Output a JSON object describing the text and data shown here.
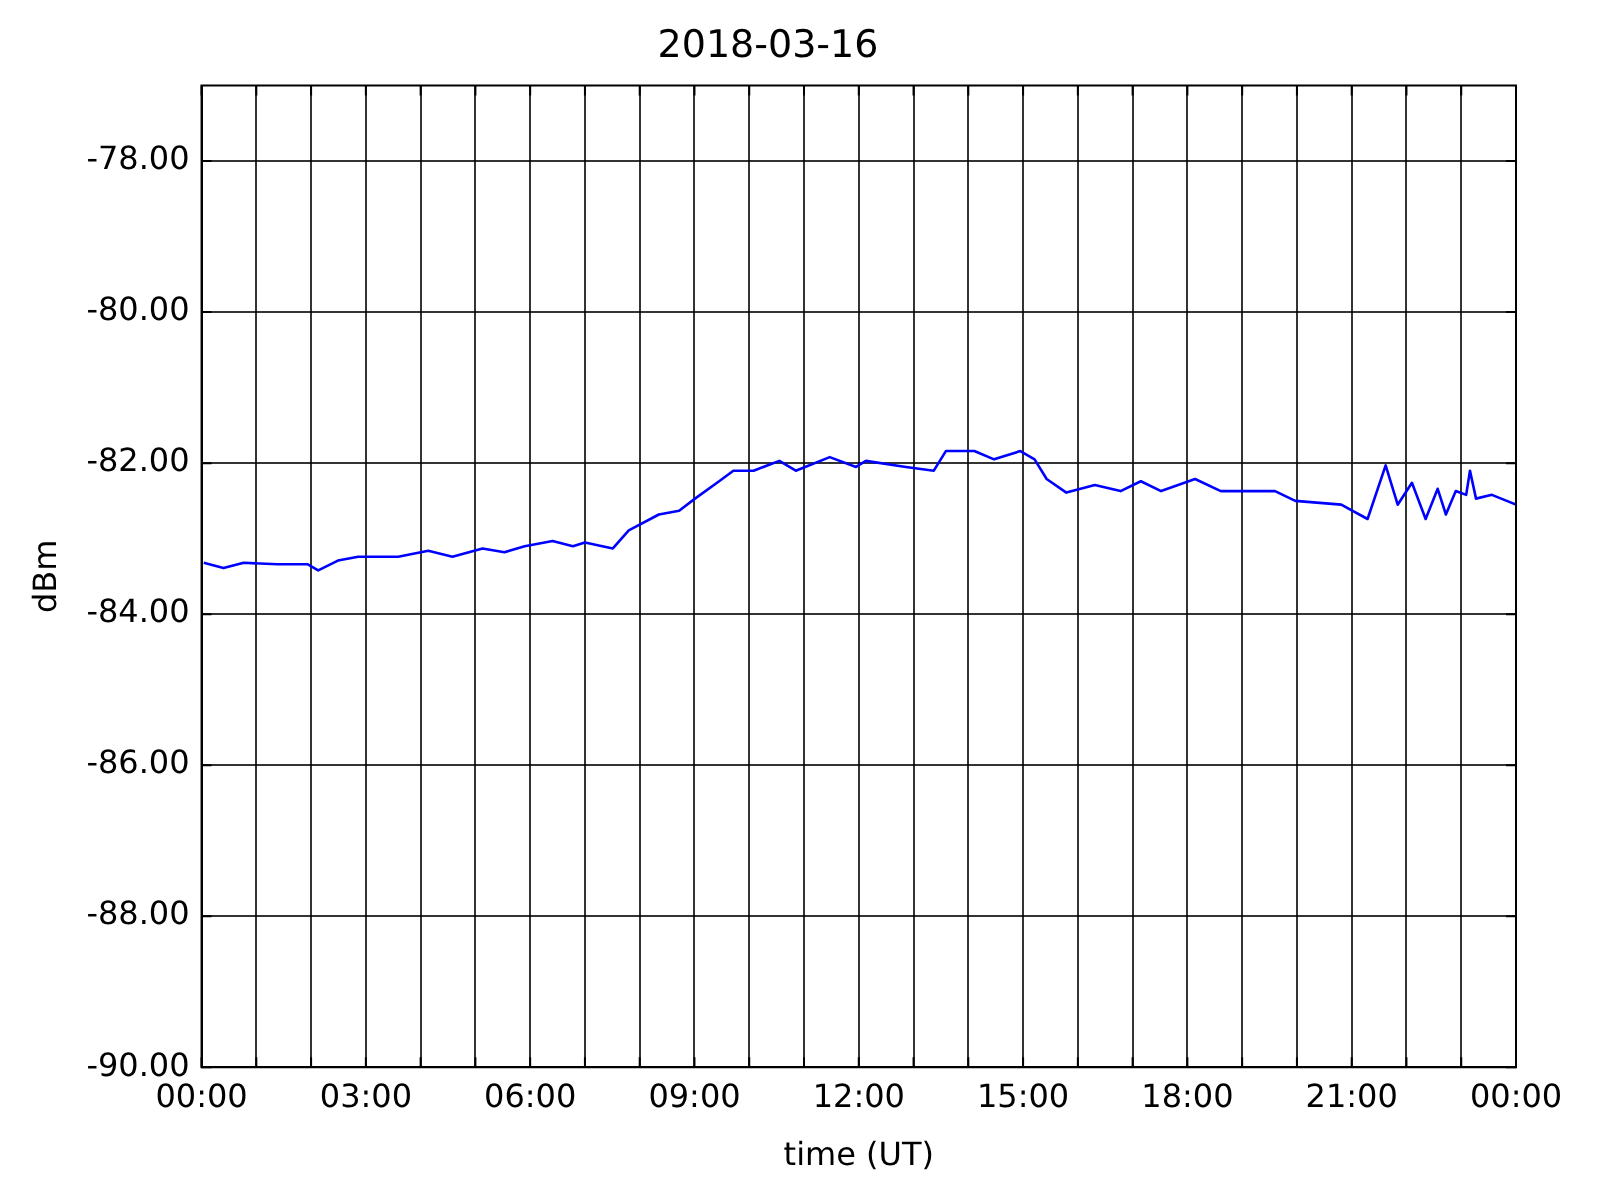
{
  "chart_data": {
    "type": "line",
    "title": "2018-03-16",
    "xlabel": "time (UT)",
    "ylabel": "dBm",
    "xlim": [
      0,
      24
    ],
    "xticks": [
      {
        "value": 0,
        "label": "00:00"
      },
      {
        "value": 1,
        "label": null
      },
      {
        "value": 2,
        "label": null
      },
      {
        "value": 3,
        "label": "03:00"
      },
      {
        "value": 4,
        "label": null
      },
      {
        "value": 5,
        "label": null
      },
      {
        "value": 6,
        "label": "06:00"
      },
      {
        "value": 7,
        "label": null
      },
      {
        "value": 8,
        "label": null
      },
      {
        "value": 9,
        "label": "09:00"
      },
      {
        "value": 10,
        "label": null
      },
      {
        "value": 11,
        "label": null
      },
      {
        "value": 12,
        "label": "12:00"
      },
      {
        "value": 13,
        "label": null
      },
      {
        "value": 14,
        "label": null
      },
      {
        "value": 15,
        "label": "15:00"
      },
      {
        "value": 16,
        "label": null
      },
      {
        "value": 17,
        "label": null
      },
      {
        "value": 18,
        "label": "18:00"
      },
      {
        "value": 19,
        "label": null
      },
      {
        "value": 20,
        "label": null
      },
      {
        "value": 21,
        "label": "21:00"
      },
      {
        "value": 22,
        "label": null
      },
      {
        "value": 23,
        "label": null
      },
      {
        "value": 24,
        "label": "00:00"
      }
    ],
    "ylim": [
      -90,
      -77
    ],
    "yticks": [
      {
        "value": -90,
        "label": "-90.00"
      },
      {
        "value": -88,
        "label": "-88.00"
      },
      {
        "value": -86,
        "label": "-86.00"
      },
      {
        "value": -84,
        "label": "-84.00"
      },
      {
        "value": -82,
        "label": "-82.00"
      },
      {
        "value": -80,
        "label": "-80.00"
      },
      {
        "value": -78,
        "label": "-78.00"
      }
    ],
    "grid": true,
    "legend": false,
    "marker": "none",
    "line_style": "solid",
    "series": [
      {
        "color": "#0000ff",
        "x": [
          0.04,
          0.4,
          0.77,
          1.39,
          1.94,
          2.13,
          2.49,
          2.86,
          3.59,
          4.14,
          4.58,
          5.13,
          5.53,
          5.9,
          6.41,
          6.78,
          7.0,
          7.51,
          7.8,
          8.35,
          8.72,
          9.01,
          9.45,
          9.71,
          10.08,
          10.55,
          10.85,
          11.47,
          11.95,
          12.13,
          12.86,
          13.37,
          13.59,
          14.11,
          14.47,
          14.95,
          15.21,
          15.43,
          15.79,
          16.31,
          16.78,
          17.15,
          17.52,
          18.14,
          18.61,
          19.09,
          19.6,
          19.97,
          20.81,
          21.29,
          21.62,
          21.84,
          22.1,
          22.35,
          22.57,
          22.72,
          22.9,
          23.09,
          23.16,
          23.27,
          23.56,
          24.0
        ],
        "values": [
          -83.32,
          -83.39,
          -83.32,
          -83.34,
          -83.34,
          -83.42,
          -83.29,
          -83.24,
          -83.24,
          -83.16,
          -83.24,
          -83.13,
          -83.18,
          -83.1,
          -83.03,
          -83.1,
          -83.05,
          -83.13,
          -82.89,
          -82.68,
          -82.63,
          -82.47,
          -82.24,
          -82.1,
          -82.1,
          -81.97,
          -82.1,
          -81.92,
          -82.05,
          -81.97,
          -82.05,
          -82.1,
          -81.84,
          -81.84,
          -81.95,
          -81.84,
          -81.95,
          -82.21,
          -82.39,
          -82.29,
          -82.37,
          -82.24,
          -82.37,
          -82.21,
          -82.37,
          -82.37,
          -82.37,
          -82.5,
          -82.55,
          -82.74,
          -82.03,
          -82.55,
          -82.26,
          -82.74,
          -82.34,
          -82.68,
          -82.37,
          -82.42,
          -82.1,
          -82.47,
          -82.42,
          -82.55
        ]
      }
    ]
  }
}
